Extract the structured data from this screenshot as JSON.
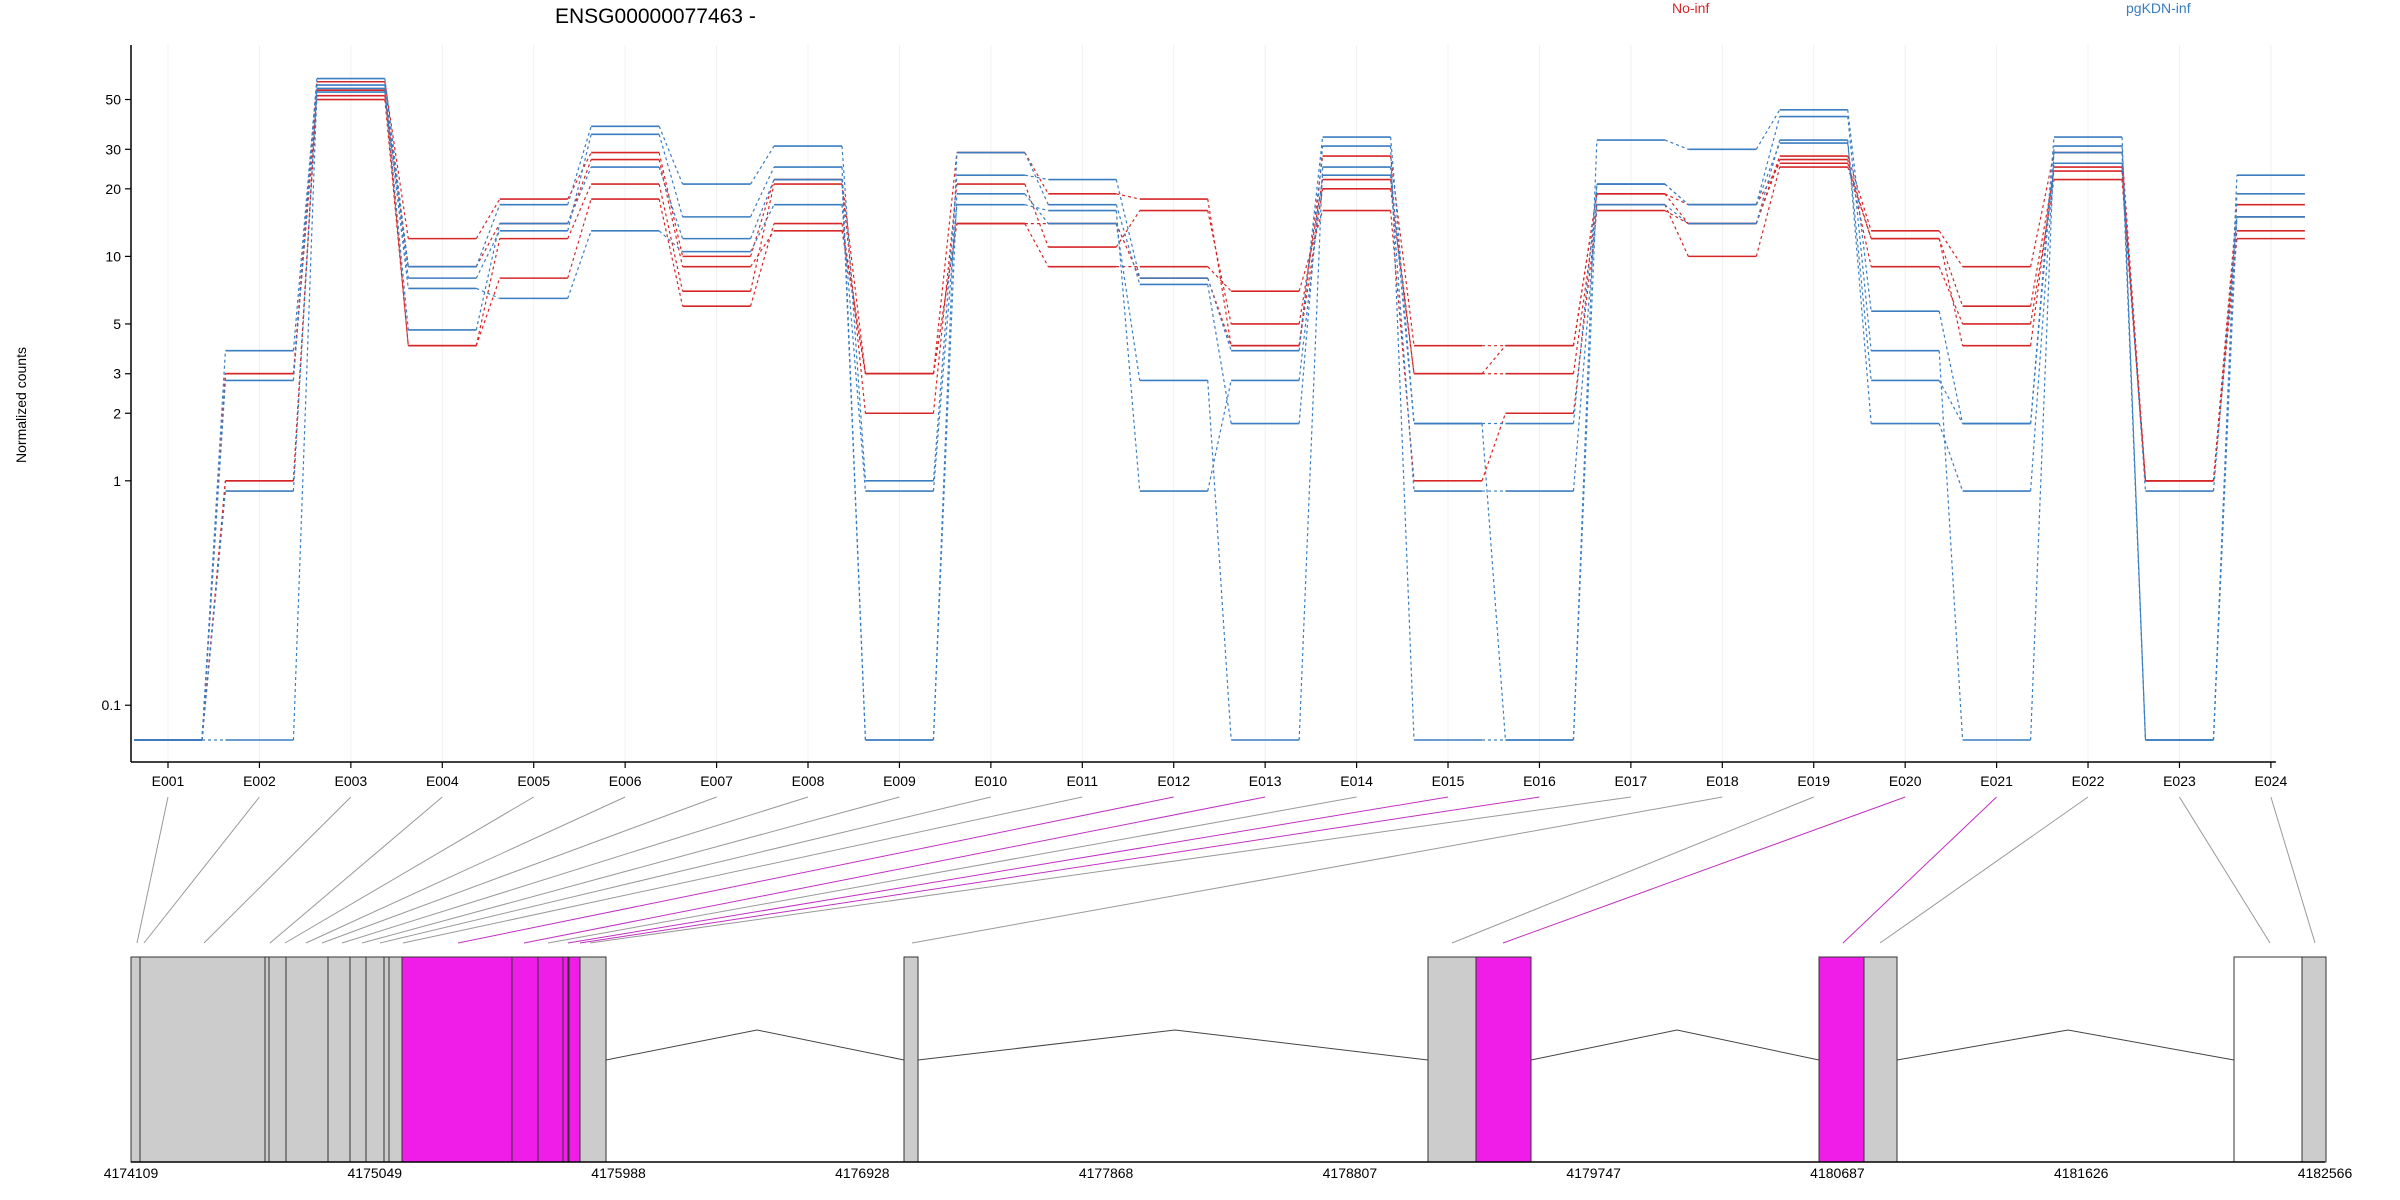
{
  "chart_data": {
    "type": "line",
    "title": "ENSG00000077463 -",
    "ylabel": "Normalized counts",
    "yscale": "log",
    "ylim": [
      0.07,
      75
    ],
    "yticks": [
      0.1,
      1,
      2,
      3,
      5,
      10,
      20,
      30,
      50
    ],
    "ytick_labels": [
      "0.1",
      "1",
      "2",
      "3",
      "5",
      "10",
      "20",
      "30",
      "50"
    ],
    "zero_display_value": 0.07,
    "categories": [
      "E001",
      "E002",
      "E003",
      "E004",
      "E005",
      "E006",
      "E007",
      "E008",
      "E009",
      "E010",
      "E011",
      "E012",
      "E013",
      "E014",
      "E015",
      "E016",
      "E017",
      "E018",
      "E019",
      "E020",
      "E021",
      "E022",
      "E023",
      "E024"
    ],
    "legend": [
      {
        "name": "No-inf",
        "color": "#d62728"
      },
      {
        "name": "pgKDN-inf",
        "color": "#3a7dc1"
      }
    ],
    "series": [
      {
        "name": "No-inf",
        "color": "#d62728",
        "values": [
          0.07,
          3,
          60,
          12,
          18,
          29,
          10,
          22,
          3,
          29,
          19,
          18,
          4,
          28,
          4,
          4,
          19,
          14,
          28,
          13,
          9,
          29,
          1,
          17
        ]
      },
      {
        "name": "No-inf",
        "color": "#d62728",
        "values": [
          0.07,
          1,
          55,
          4,
          12,
          21,
          7,
          21,
          2,
          21,
          11,
          16,
          5,
          22,
          3,
          3,
          17,
          10,
          25,
          12,
          4,
          25,
          1,
          13
        ]
      },
      {
        "name": "No-inf",
        "color": "#d62728",
        "values": [
          0.07,
          3,
          50,
          4,
          8,
          18,
          6,
          14,
          3,
          14,
          9,
          9,
          7,
          16,
          1,
          2,
          16,
          14,
          27,
          9,
          5,
          22,
          1,
          12
        ]
      },
      {
        "name": "No-inf",
        "color": "#d62728",
        "values": [
          0.07,
          1,
          52,
          9,
          14,
          27,
          9,
          13,
          3,
          14,
          14,
          8,
          4,
          20,
          3,
          4,
          19,
          17,
          26,
          12,
          6,
          24,
          1,
          15
        ]
      },
      {
        "name": "pgKDN-inf",
        "color": "#3a7dc1",
        "values": [
          0.07,
          3.8,
          62,
          9,
          17,
          38,
          21,
          31,
          1,
          23,
          22,
          8,
          3.8,
          34,
          1.8,
          0.07,
          33,
          30,
          45,
          5.7,
          1.8,
          34,
          0.07,
          23
        ]
      },
      {
        "name": "pgKDN-inf",
        "color": "#3a7dc1",
        "values": [
          0.07,
          2.8,
          58,
          8,
          13,
          35,
          15,
          25,
          0.07,
          29,
          17,
          7.5,
          1.8,
          31,
          0.07,
          0.07,
          21,
          17,
          42,
          3.8,
          0.07,
          31,
          0.07,
          19
        ]
      },
      {
        "name": "pgKDN-inf",
        "color": "#3a7dc1",
        "values": [
          0.07,
          0.9,
          56,
          4.7,
          14,
          25,
          12,
          22,
          0.07,
          19,
          14,
          2.8,
          0.07,
          25,
          1.8,
          1.8,
          21,
          17,
          32,
          2.8,
          1.8,
          29,
          0.07,
          15
        ]
      },
      {
        "name": "pgKDN-inf",
        "color": "#3a7dc1",
        "values": [
          0.07,
          0.07,
          54,
          7.2,
          6.5,
          13,
          10.5,
          17,
          0.9,
          17,
          16,
          0.9,
          2.8,
          23,
          0.9,
          0.9,
          17,
          14,
          33,
          1.8,
          0.9,
          26,
          0.9,
          15
        ]
      }
    ]
  },
  "gene_model": {
    "coordinate_labels": [
      "4174109",
      "4175049",
      "4175988",
      "4176928",
      "4177868",
      "4178807",
      "4179747",
      "4180687",
      "4181626",
      "4182566"
    ],
    "colors": {
      "exon": "#cccccc",
      "highlight": "#f01ce8",
      "outline": "#333333",
      "connector": "#999999",
      "connector_highlight": "#c030c0"
    }
  }
}
